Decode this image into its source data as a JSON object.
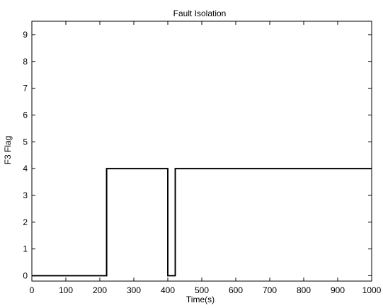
{
  "chart_data": {
    "type": "line",
    "title": "Fault Isolation",
    "xlabel": "Time(s)",
    "ylabel": "F3 Flag",
    "xlim": [
      0,
      1000
    ],
    "ylim": [
      -0.2,
      9.5
    ],
    "x_ticks": [
      0,
      100,
      200,
      300,
      400,
      500,
      600,
      700,
      800,
      900,
      1000
    ],
    "y_ticks": [
      0,
      1,
      2,
      3,
      4,
      5,
      6,
      7,
      8,
      9
    ],
    "grid": false,
    "legend": "none",
    "line_color": "#000000",
    "series": [
      {
        "x": [
          0,
          220,
          220,
          400,
          400,
          422,
          422,
          1000
        ],
        "y": [
          0,
          0,
          4,
          4,
          0,
          0,
          4,
          4
        ]
      }
    ]
  }
}
